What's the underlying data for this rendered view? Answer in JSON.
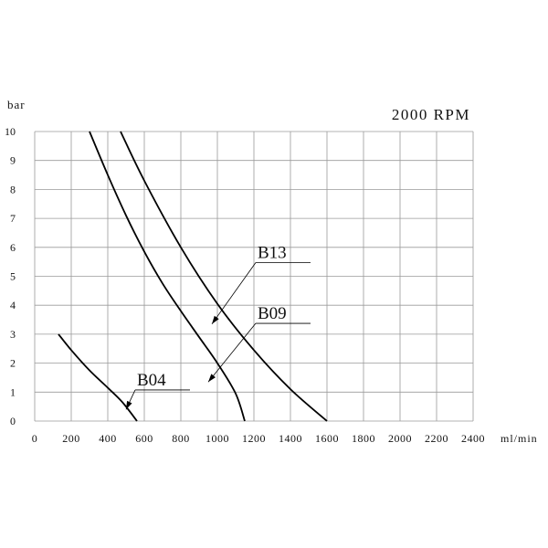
{
  "chart_data": {
    "type": "line",
    "title": "2000 RPM",
    "xlabel": "ml/min",
    "ylabel": "bar",
    "xlim": [
      0,
      2400
    ],
    "ylim": [
      0,
      10
    ],
    "x_ticks": [
      "0",
      "200",
      "400",
      "600",
      "800",
      "1000",
      "1200",
      "1400",
      "1600",
      "1800",
      "2000",
      "2200",
      "2400"
    ],
    "y_ticks": [
      "0",
      "1",
      "2",
      "3",
      "4",
      "5",
      "6",
      "7",
      "8",
      "9",
      "10"
    ],
    "grid": true,
    "series": [
      {
        "name": "B04",
        "points": [
          [
            130,
            3.0
          ],
          [
            200,
            2.45
          ],
          [
            300,
            1.75
          ],
          [
            400,
            1.15
          ],
          [
            480,
            0.65
          ],
          [
            560,
            0.0
          ]
        ]
      },
      {
        "name": "B09",
        "points": [
          [
            300,
            10.0
          ],
          [
            400,
            8.5
          ],
          [
            500,
            7.1
          ],
          [
            600,
            5.85
          ],
          [
            700,
            4.75
          ],
          [
            800,
            3.8
          ],
          [
            900,
            2.9
          ],
          [
            1000,
            2.0
          ],
          [
            1100,
            0.95
          ],
          [
            1150,
            0.0
          ]
        ]
      },
      {
        "name": "B13",
        "points": [
          [
            470,
            10.0
          ],
          [
            600,
            8.3
          ],
          [
            800,
            6.0
          ],
          [
            1000,
            4.05
          ],
          [
            1200,
            2.45
          ],
          [
            1400,
            1.1
          ],
          [
            1600,
            0.0
          ]
        ]
      }
    ],
    "annotations": [
      {
        "label": "B13",
        "series": "B13",
        "at": [
          970,
          3.35
        ],
        "label_at": [
          1340,
          5.6
        ]
      },
      {
        "label": "B09",
        "series": "B09",
        "at": [
          950,
          1.35
        ],
        "label_at": [
          1340,
          3.5
        ]
      },
      {
        "label": "B04",
        "series": "B04",
        "at": [
          500,
          0.4
        ],
        "label_at": [
          680,
          1.2
        ]
      }
    ]
  }
}
